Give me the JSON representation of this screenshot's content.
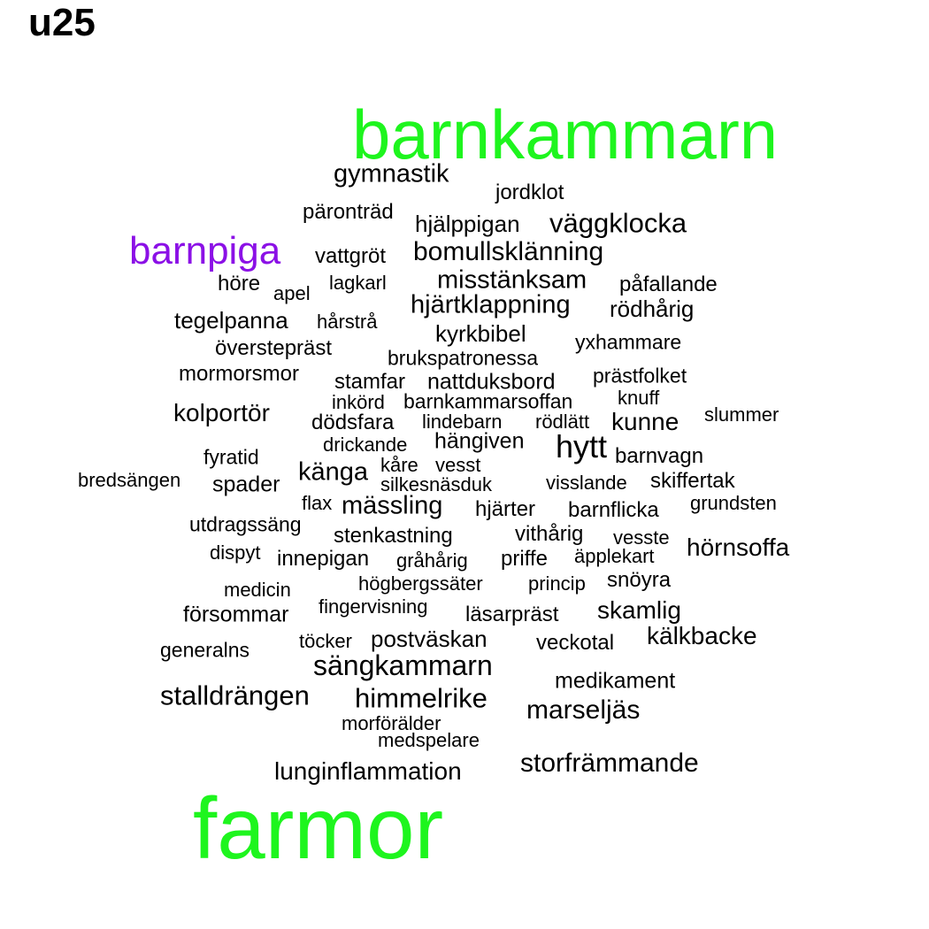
{
  "title": "u25",
  "colors": {
    "highlight": "#1ef51e",
    "accent": "#8b10e6",
    "text": "#000000"
  },
  "words": [
    {
      "text": "barnkammarn",
      "tier": "highlight"
    },
    {
      "text": "farmor",
      "tier": "highlight"
    },
    {
      "text": "barnpiga",
      "tier": "accent"
    },
    {
      "text": "gymnastik"
    },
    {
      "text": "jordklot"
    },
    {
      "text": "päronträd"
    },
    {
      "text": "hjälppigan"
    },
    {
      "text": "väggklocka"
    },
    {
      "text": "vattgröt"
    },
    {
      "text": "bomullsklänning"
    },
    {
      "text": "höre"
    },
    {
      "text": "apel"
    },
    {
      "text": "lagkarl"
    },
    {
      "text": "misstänksam"
    },
    {
      "text": "påfallande"
    },
    {
      "text": "hjärtklappning"
    },
    {
      "text": "rödhårig"
    },
    {
      "text": "tegelpanna"
    },
    {
      "text": "hårstrå"
    },
    {
      "text": "kyrkbibel"
    },
    {
      "text": "yxhammare"
    },
    {
      "text": "överstepräst"
    },
    {
      "text": "brukspatronessa"
    },
    {
      "text": "mormorsmor"
    },
    {
      "text": "stamfar"
    },
    {
      "text": "nattduksbord"
    },
    {
      "text": "prästfolket"
    },
    {
      "text": "inkörd"
    },
    {
      "text": "barnkammarsoffan"
    },
    {
      "text": "knuff"
    },
    {
      "text": "kolportör"
    },
    {
      "text": "dödsfara"
    },
    {
      "text": "lindebarn"
    },
    {
      "text": "rödlätt"
    },
    {
      "text": "kunne"
    },
    {
      "text": "slummer"
    },
    {
      "text": "drickande"
    },
    {
      "text": "hängiven"
    },
    {
      "text": "hytt"
    },
    {
      "text": "fyratid"
    },
    {
      "text": "kåre"
    },
    {
      "text": "vesst"
    },
    {
      "text": "barnvagn"
    },
    {
      "text": "känga"
    },
    {
      "text": "bredsängen"
    },
    {
      "text": "spader"
    },
    {
      "text": "silkesnäsduk"
    },
    {
      "text": "visslande"
    },
    {
      "text": "skiffertak"
    },
    {
      "text": "flax"
    },
    {
      "text": "mässling"
    },
    {
      "text": "hjärter"
    },
    {
      "text": "barnflicka"
    },
    {
      "text": "grundsten"
    },
    {
      "text": "utdragssäng"
    },
    {
      "text": "stenkastning"
    },
    {
      "text": "vithårig"
    },
    {
      "text": "vesste"
    },
    {
      "text": "hörnsoffa"
    },
    {
      "text": "dispyt"
    },
    {
      "text": "innepigan"
    },
    {
      "text": "gråhårig"
    },
    {
      "text": "priffe"
    },
    {
      "text": "äpplekart"
    },
    {
      "text": "medicin"
    },
    {
      "text": "högbergssäter"
    },
    {
      "text": "princip"
    },
    {
      "text": "snöyra"
    },
    {
      "text": "försommar"
    },
    {
      "text": "fingervisning"
    },
    {
      "text": "läsarpräst"
    },
    {
      "text": "skamlig"
    },
    {
      "text": "generalns"
    },
    {
      "text": "töcker"
    },
    {
      "text": "postväskan"
    },
    {
      "text": "veckotal"
    },
    {
      "text": "kälkbacke"
    },
    {
      "text": "sängkammarn"
    },
    {
      "text": "medikament"
    },
    {
      "text": "stalldrängen"
    },
    {
      "text": "himmelrike"
    },
    {
      "text": "marseljäs"
    },
    {
      "text": "morförälder"
    },
    {
      "text": "medspelare"
    },
    {
      "text": "storfrämmande"
    },
    {
      "text": "lunginflammation"
    }
  ]
}
